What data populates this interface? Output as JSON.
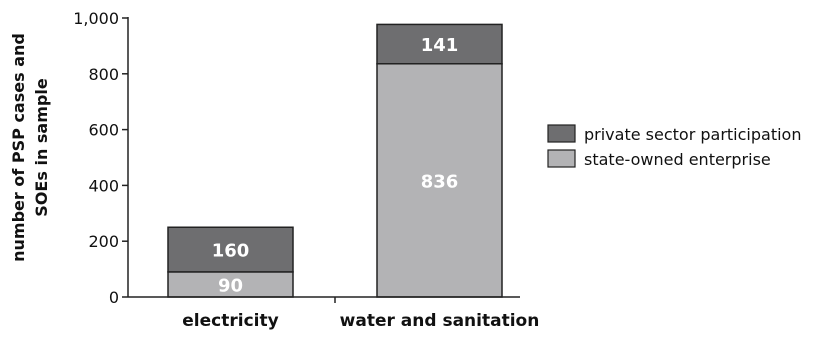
{
  "chart_data": {
    "type": "bar",
    "stacked": true,
    "categories": [
      "electricity",
      "water and sanitation"
    ],
    "series": [
      {
        "name": "state-owned enterprise",
        "values": [
          90,
          836
        ],
        "color": "#b3b3b5"
      },
      {
        "name": "private sector participation",
        "values": [
          160,
          141
        ],
        "color": "#6e6e70"
      }
    ],
    "ylabel_lines": [
      "number of PSP cases and",
      "SOEs in sample"
    ],
    "ylim": [
      0,
      1000
    ],
    "yticks": [
      0,
      200,
      400,
      600,
      800,
      1000
    ],
    "ytick_labels": [
      "0",
      "200",
      "400",
      "600",
      "800",
      "1,000"
    ],
    "grid": false,
    "legend": {
      "position": "right",
      "order": [
        "private sector participation",
        "state-owned enterprise"
      ]
    }
  }
}
